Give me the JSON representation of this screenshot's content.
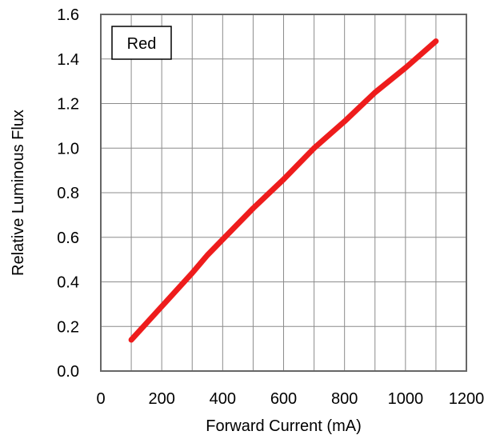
{
  "chart_data": {
    "type": "line",
    "xlabel": "Forward Current (mA)",
    "ylabel": "Relative Luminous Flux",
    "xlim": [
      0,
      1200
    ],
    "ylim": [
      0.0,
      1.6
    ],
    "x_ticks": [
      0,
      200,
      400,
      600,
      800,
      1000,
      1200
    ],
    "x_tick_labels": [
      "0",
      "200",
      "400",
      "600",
      "800",
      "1000",
      "1200"
    ],
    "x_minor_step": 100,
    "y_ticks": [
      0.0,
      0.2,
      0.4,
      0.6,
      0.8,
      1.0,
      1.2,
      1.4,
      1.6
    ],
    "y_tick_labels": [
      "0.0",
      "0.2",
      "0.4",
      "0.6",
      "0.8",
      "1.0",
      "1.2",
      "1.4",
      "1.6"
    ],
    "grid": true,
    "legend_placement": "top-left",
    "legend_label": "Red",
    "series": [
      {
        "name": "Red",
        "color": "#ee1c1c",
        "x": [
          100,
          200,
          300,
          350,
          400,
          500,
          600,
          700,
          800,
          900,
          1000,
          1100
        ],
        "y": [
          0.14,
          0.29,
          0.44,
          0.52,
          0.59,
          0.73,
          0.86,
          1.0,
          1.12,
          1.25,
          1.36,
          1.48
        ]
      }
    ]
  }
}
